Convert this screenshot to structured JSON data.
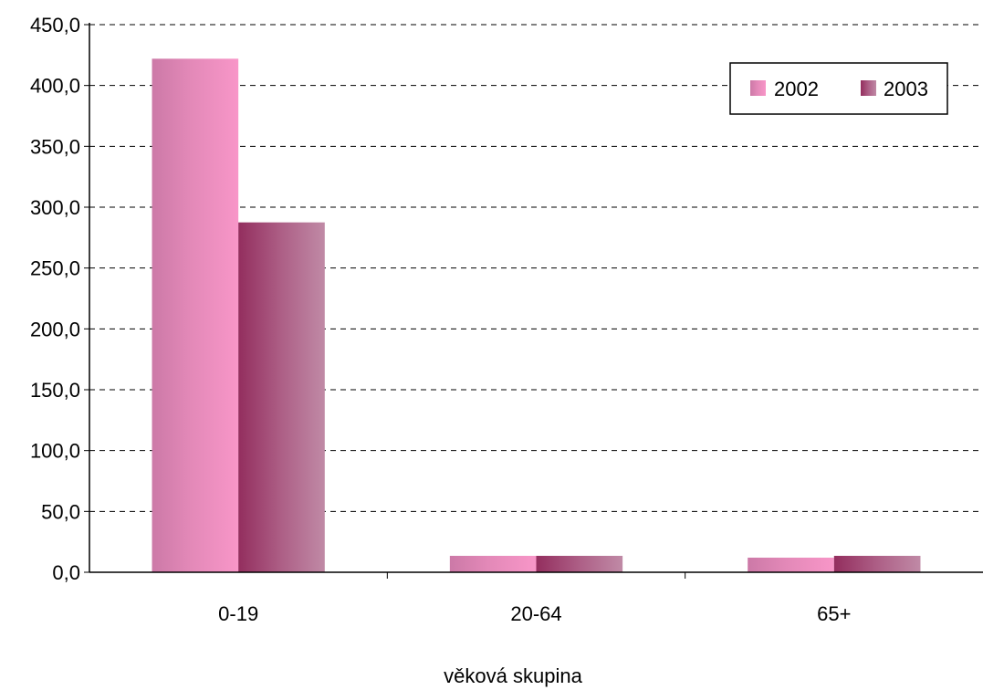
{
  "chart_data": {
    "type": "bar",
    "categories": [
      "0-19",
      "20-64",
      "65+"
    ],
    "series": [
      {
        "name": "2002",
        "values": [
          422.0,
          13.5,
          12.0
        ],
        "color": "#f48fc1"
      },
      {
        "name": "2003",
        "values": [
          287.5,
          13.5,
          13.5
        ],
        "color": "#9b3565"
      }
    ],
    "y_ticks": [
      "0,0",
      "50,0",
      "100,0",
      "150,0",
      "200,0",
      "250,0",
      "300,0",
      "350,0",
      "400,0",
      "450,0"
    ],
    "ylim": [
      0,
      450
    ],
    "xlabel": "věková skupina",
    "ylabel": "",
    "title": "",
    "grid": true,
    "legend_position": "top-right"
  }
}
